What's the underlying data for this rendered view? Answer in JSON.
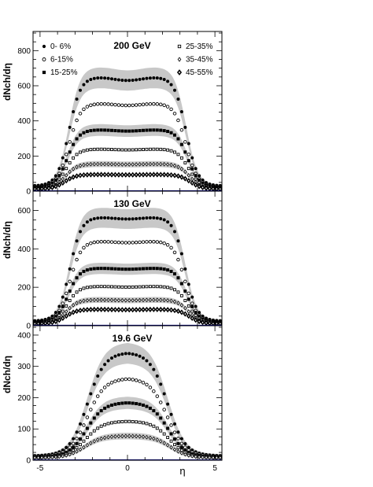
{
  "chart_data": [
    {
      "type": "scatter",
      "title": "200 GeV",
      "ylabel": "dNch/dη",
      "xlabel": "",
      "xlim": [
        -5.4,
        5.4
      ],
      "ylim": [
        0,
        900
      ],
      "yticks": [
        0,
        200,
        400,
        600,
        800
      ],
      "xticks": [
        -5,
        0,
        5
      ],
      "legend": [
        {
          "label": "0- 6%",
          "marker": "filled-circle"
        },
        {
          "label": "6-15%",
          "marker": "open-circle"
        },
        {
          "label": "15-25%",
          "marker": "filled-square"
        },
        {
          "label": "25-35%",
          "marker": "open-square"
        },
        {
          "label": "35-45%",
          "marker": "open-diamond"
        },
        {
          "label": "45-55%",
          "marker": "open-diamond-bold"
        }
      ],
      "systematic_bands": true,
      "series": [
        {
          "name": "0- 6%",
          "plateau": 650,
          "halfwidth": 3.35,
          "edge": 0.6,
          "dip": 20,
          "edge_value": 30
        },
        {
          "name": "6-15%",
          "plateau": 500,
          "halfwidth": 3.35,
          "edge": 0.6,
          "dip": 12,
          "edge_value": 25
        },
        {
          "name": "15-25%",
          "plateau": 350,
          "halfwidth": 3.45,
          "edge": 0.6,
          "dip": 8,
          "edge_value": 22
        },
        {
          "name": "25-35%",
          "plateau": 240,
          "halfwidth": 3.5,
          "edge": 0.6,
          "dip": 5,
          "edge_value": 18
        },
        {
          "name": "35-45%",
          "plateau": 155,
          "halfwidth": 3.55,
          "edge": 0.6,
          "dip": 3,
          "edge_value": 15
        },
        {
          "name": "45-55%",
          "plateau": 95,
          "halfwidth": 3.6,
          "edge": 0.6,
          "dip": 2,
          "edge_value": 12
        }
      ]
    },
    {
      "type": "scatter",
      "title": "130 GeV",
      "ylabel": "dNch/dη",
      "xlabel": "",
      "xlim": [
        -5.4,
        5.4
      ],
      "ylim": [
        0,
        700
      ],
      "yticks": [
        0,
        200,
        400,
        600
      ],
      "xticks": [
        -5,
        0,
        5
      ],
      "systematic_bands": true,
      "series": [
        {
          "name": "0- 6%",
          "plateau": 565,
          "halfwidth": 3.3,
          "edge": 0.6,
          "dip": 10,
          "edge_value": 25
        },
        {
          "name": "6-15%",
          "plateau": 440,
          "halfwidth": 3.3,
          "edge": 0.6,
          "dip": 8,
          "edge_value": 20
        },
        {
          "name": "15-25%",
          "plateau": 300,
          "halfwidth": 3.4,
          "edge": 0.6,
          "dip": 6,
          "edge_value": 18
        },
        {
          "name": "25-35%",
          "plateau": 205,
          "halfwidth": 3.45,
          "edge": 0.6,
          "dip": 4,
          "edge_value": 15
        },
        {
          "name": "35-45%",
          "plateau": 135,
          "halfwidth": 3.5,
          "edge": 0.6,
          "dip": 3,
          "edge_value": 12
        },
        {
          "name": "45-55%",
          "plateau": 85,
          "halfwidth": 3.55,
          "edge": 0.6,
          "dip": 2,
          "edge_value": 10
        }
      ]
    },
    {
      "type": "scatter",
      "title": "19.6 GeV",
      "ylabel": "dNch/dη",
      "xlabel": "η",
      "xlim": [
        -5.4,
        5.4
      ],
      "ylim": [
        0,
        430
      ],
      "yticks": [
        0,
        100,
        200,
        300,
        400
      ],
      "xticks": [
        -5,
        0,
        5
      ],
      "systematic_bands": true,
      "series": [
        {
          "name": "0- 6%",
          "plateau": 345,
          "halfwidth": 2.3,
          "edge": 0.9,
          "dip": 0,
          "edge_value": 14
        },
        {
          "name": "6-15%",
          "plateau": 262,
          "halfwidth": 2.3,
          "edge": 0.9,
          "dip": 0,
          "edge_value": 12
        },
        {
          "name": "15-25%",
          "plateau": 185,
          "halfwidth": 2.35,
          "edge": 0.9,
          "dip": 0,
          "edge_value": 10
        },
        {
          "name": "25-35%",
          "plateau": 125,
          "halfwidth": 2.4,
          "edge": 0.9,
          "dip": 0,
          "edge_value": 9
        },
        {
          "name": "35-45%",
          "plateau": 78,
          "halfwidth": 2.45,
          "edge": 0.9,
          "dip": 0,
          "edge_value": 8
        }
      ]
    }
  ],
  "style": {
    "band_color": "#c8c8c8",
    "marker_color": "#000000",
    "zero_line_color": "#000080",
    "frame_color": "#000000"
  }
}
